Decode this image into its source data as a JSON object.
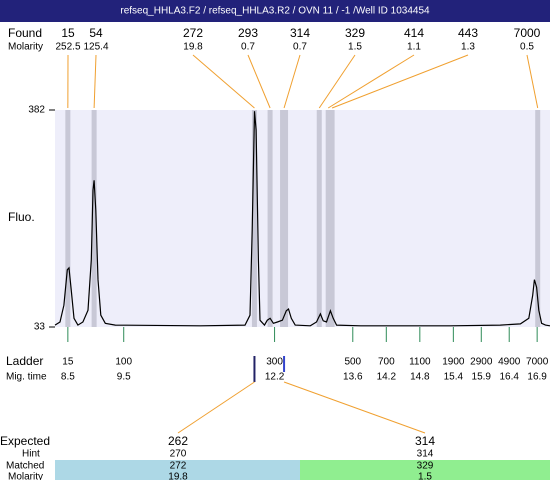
{
  "header": {
    "title": "refseq_HHLA3.F2 / refseq_HHLA3.R2 / OVN 11  / -1  /Well ID 1034454"
  },
  "found": {
    "label": "Found",
    "molarity_label": "Molarity",
    "sizes": [
      15,
      54,
      272,
      293,
      314,
      329,
      414,
      443,
      7000
    ],
    "molarity": [
      252.5,
      125.4,
      19.8,
      0.7,
      0.7,
      1.5,
      1.1,
      1.3,
      0.5
    ],
    "mig_times": [
      8.5,
      8.97,
      11.84,
      12.12,
      12.37,
      13.0,
      13.16,
      13.23,
      16.91
    ]
  },
  "chart_data": {
    "type": "line",
    "y_label": "Fluo.",
    "color": "#000000",
    "plot_color": "#eeeefa",
    "band_color": "#c8c8d6",
    "xlim": [
      8.27,
      17.13
    ],
    "ylim": [
      33,
      382
    ],
    "yticks": [
      33,
      382
    ],
    "x": [
      8.27,
      8.36,
      8.43,
      8.49,
      8.52,
      8.56,
      8.61,
      8.68,
      8.77,
      8.86,
      8.92,
      8.95,
      8.97,
      9.0,
      9.04,
      9.09,
      9.17,
      9.35,
      10.87,
      11.67,
      11.76,
      11.8,
      11.84,
      11.87,
      11.91,
      11.94,
      12.02,
      12.07,
      12.12,
      12.18,
      12.25,
      12.34,
      12.41,
      12.45,
      12.5,
      12.57,
      12.84,
      12.95,
      13.02,
      13.07,
      13.13,
      13.2,
      13.25,
      13.31,
      13.74,
      15.35,
      16.24,
      16.6,
      16.75,
      16.82,
      16.85,
      16.89,
      16.93,
      16.98,
      17.05,
      17.13
    ],
    "values": [
      36,
      41,
      68,
      125,
      128,
      93,
      47,
      36,
      41,
      60,
      141,
      253,
      269,
      221,
      109,
      52,
      39,
      36,
      35,
      36,
      52,
      189,
      380,
      350,
      141,
      44,
      36,
      44,
      47,
      39,
      41,
      44,
      59,
      62,
      47,
      36,
      35,
      41,
      54,
      43,
      41,
      59,
      47,
      36,
      35,
      35,
      36,
      38,
      47,
      84,
      109,
      97,
      60,
      39,
      36,
      35
    ]
  },
  "ladder": {
    "label": "Ladder",
    "time_label": "Mig. time",
    "color": "#2e8b57",
    "sizes": [
      15,
      100,
      300,
      500,
      700,
      1100,
      1900,
      2900,
      4900,
      7000
    ],
    "mig_times": [
      8.5,
      9.5,
      12.2,
      13.6,
      14.2,
      14.8,
      15.4,
      15.9,
      16.4,
      16.9
    ]
  },
  "expected": {
    "label": "Expected",
    "hint_label": "Hint",
    "matched_label": "Matched",
    "molarity_label": "Molarity",
    "values": [
      262,
      314
    ],
    "hints": [
      270,
      314
    ],
    "matched": [
      272,
      329
    ],
    "molarity": [
      19.8,
      1.5
    ],
    "colors": [
      "#add8e6",
      "#90ee90"
    ]
  }
}
